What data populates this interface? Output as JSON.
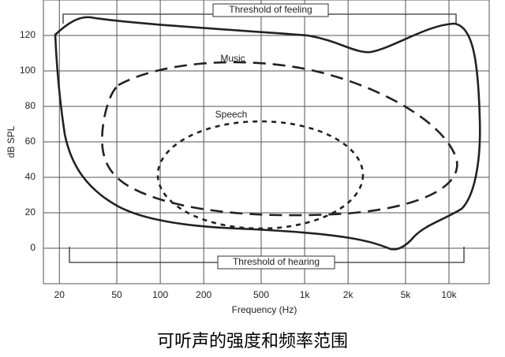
{
  "chart": {
    "ylabel": "dB SPL",
    "xlabel": "Frequency (Hz)",
    "ylim": [
      -20,
      140
    ],
    "yticks": [
      0,
      20,
      40,
      60,
      80,
      100,
      120
    ],
    "xlim": [
      15.5,
      19000
    ],
    "log_x": true,
    "grid": true,
    "xticks": [
      20,
      50,
      100,
      200,
      500,
      {
        "value": 1000,
        "label": "1k"
      },
      {
        "value": 2000,
        "label": "2k"
      },
      {
        "value": 5000,
        "label": "5k"
      },
      {
        "value": 10000,
        "label": "10k"
      }
    ]
  },
  "labels": {
    "feeling": "Threshold of feeling",
    "hearing": "Threshold of hearing",
    "music": "Music",
    "speech": "Speech"
  },
  "caption": "可听声的强度和频率范围"
}
